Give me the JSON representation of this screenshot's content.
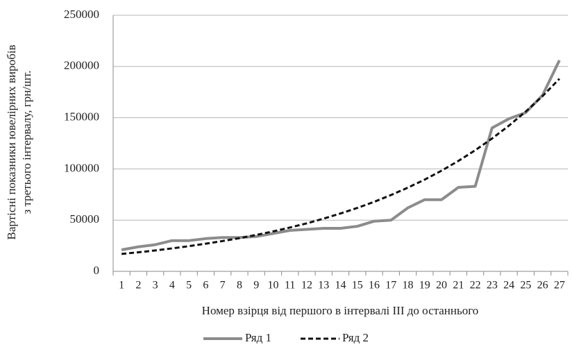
{
  "chart_data": {
    "type": "line",
    "ylabel": [
      "Вартісні показники ювелірних виробів",
      "з третього інтервалу, грн/шт."
    ],
    "xlabel": "Номер взірця від першого в інтервалі ІІІ до останнього",
    "categories": [
      "1",
      "2",
      "3",
      "4",
      "5",
      "6",
      "7",
      "8",
      "9",
      "10",
      "11",
      "12",
      "13",
      "14",
      "15",
      "16",
      "17",
      "18",
      "19",
      "20",
      "21",
      "22",
      "23",
      "24",
      "25",
      "26",
      "27"
    ],
    "series": [
      {
        "name": "Ряд 1",
        "color": "#8c8c8c",
        "dashed": false,
        "values": [
          21000,
          24000,
          26000,
          30000,
          30000,
          32000,
          33000,
          33000,
          34000,
          37000,
          40000,
          41000,
          42000,
          42000,
          44000,
          49000,
          50000,
          62000,
          70000,
          70000,
          82000,
          83000,
          140000,
          149000,
          155000,
          172000,
          206000
        ]
      },
      {
        "name": "Ряд 2",
        "color": "#111111",
        "dashed": true,
        "values": [
          17000,
          18600,
          20400,
          22400,
          24600,
          27000,
          29600,
          32400,
          35600,
          39000,
          42800,
          46900,
          51500,
          56500,
          61900,
          67900,
          74500,
          81700,
          89600,
          98300,
          107800,
          118200,
          129700,
          142200,
          156000,
          171100,
          188000
        ]
      }
    ],
    "ylim": [
      0,
      250000
    ],
    "yticks": [
      0,
      50000,
      100000,
      150000,
      200000,
      250000
    ],
    "grid": true,
    "legend": "bottom"
  }
}
